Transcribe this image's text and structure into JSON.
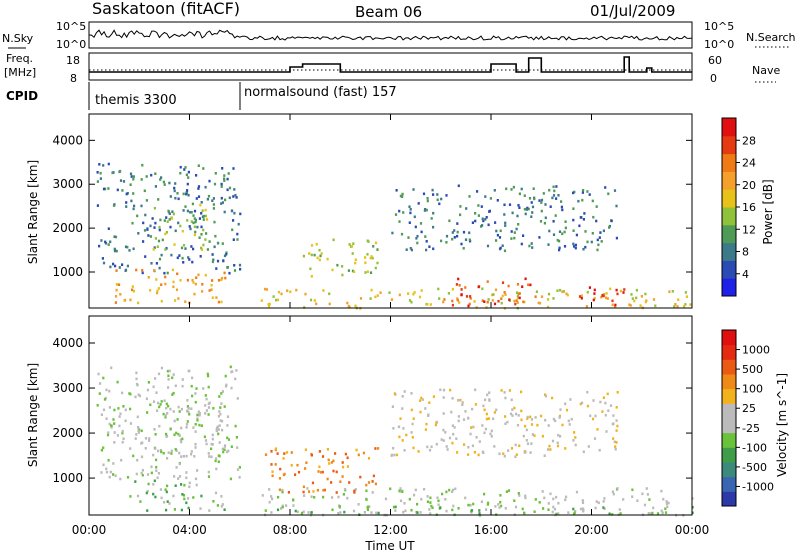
{
  "header": {
    "title": "Saskatoon (fitACF)",
    "beam": "Beam 06",
    "date": "01/Jul/2009"
  },
  "noise_panel": {
    "left_label": "N.Sky",
    "left_ticks": [
      "10^5",
      "10^0"
    ],
    "right_label": "N.Search",
    "right_ticks": [
      "10^5",
      "10^0"
    ]
  },
  "freq_panel": {
    "left_label_1": "Freq.",
    "left_label_2": "[MHz]",
    "left_ticks": [
      "18",
      "8"
    ],
    "right_label": "Nave",
    "right_ticks": [
      "60",
      "0"
    ]
  },
  "cpid_panel": {
    "label": "CPID",
    "segments": [
      {
        "name": "themis 3300",
        "start_hour": 0
      },
      {
        "name": "normalsound (fast) 157",
        "start_hour": 6
      }
    ]
  },
  "x_axis": {
    "label": "Time UT",
    "ticks": [
      "00:00",
      "04:00",
      "08:00",
      "12:00",
      "16:00",
      "20:00",
      "00:00"
    ]
  },
  "chart_data": [
    {
      "type": "heatmap",
      "title": "",
      "ylabel": "Slant Range [km]",
      "xlabel": "Time UT",
      "x_range_hours": [
        0,
        24
      ],
      "ylim": [
        180,
        4600
      ],
      "yticks": [
        1000,
        2000,
        3000,
        4000
      ],
      "colorbar": {
        "label": "Power [dB]",
        "ticks": [
          4,
          8,
          12,
          16,
          20,
          24,
          28
        ],
        "colors": [
          "#1e22e8",
          "#2a4bb4",
          "#3c7a8a",
          "#4f9a55",
          "#8fc13a",
          "#e6c21b",
          "#f4a02a",
          "#f07a16",
          "#e53a12",
          "#e01010"
        ]
      },
      "regions": [
        {
          "t0": 0.3,
          "t1": 6.0,
          "r0": 1000,
          "r1": 3500,
          "level": 2
        },
        {
          "t0": 1.0,
          "t1": 5.5,
          "r0": 300,
          "r1": 1100,
          "level": 6
        },
        {
          "t0": 2.5,
          "t1": 4.8,
          "r0": 1500,
          "r1": 2600,
          "level": 4
        },
        {
          "t0": 6.8,
          "t1": 24.0,
          "r0": 200,
          "r1": 650,
          "level": 5
        },
        {
          "t0": 14.0,
          "t1": 17.8,
          "r0": 250,
          "r1": 900,
          "level": 8
        },
        {
          "t0": 19.5,
          "t1": 21.3,
          "r0": 250,
          "r1": 700,
          "level": 9
        },
        {
          "t0": 8.5,
          "t1": 11.5,
          "r0": 900,
          "r1": 1800,
          "level": 4
        },
        {
          "t0": 12.0,
          "t1": 21.0,
          "r0": 1500,
          "r1": 3000,
          "level": 2
        }
      ]
    },
    {
      "type": "heatmap",
      "title": "",
      "ylabel": "Slant Range [km]",
      "xlabel": "Time UT",
      "x_range_hours": [
        0,
        24
      ],
      "ylim": [
        180,
        4600
      ],
      "yticks": [
        1000,
        2000,
        3000,
        4000
      ],
      "colorbar": {
        "label": "Velocity [m s^-1]",
        "ticks": [
          1000,
          500,
          100,
          25,
          -25,
          -100,
          -500,
          -1000
        ],
        "colors": [
          "#2b3aa8",
          "#3966b2",
          "#3c8a7c",
          "#3f9d4a",
          "#6ac13a",
          "#bbbbbb",
          "#bbbbbb",
          "#f2b21e",
          "#f08a16",
          "#eb5a12",
          "#e62a12",
          "#e01010"
        ]
      },
      "regions": [
        {
          "t0": 0.3,
          "t1": 6.0,
          "r0": 1000,
          "r1": 3500,
          "level": 5
        },
        {
          "t0": 1.5,
          "t1": 5.5,
          "r0": 300,
          "r1": 1000,
          "level": 4
        },
        {
          "t0": 2.5,
          "t1": 5.5,
          "r0": 1500,
          "r1": 2700,
          "level": 5
        },
        {
          "t0": 6.8,
          "t1": 24.0,
          "r0": 200,
          "r1": 800,
          "level": 5
        },
        {
          "t0": 6.8,
          "t1": 24.0,
          "r0": 200,
          "r1": 400,
          "level": 4
        },
        {
          "t0": 7.0,
          "t1": 11.5,
          "r0": 700,
          "r1": 1700,
          "level": 8
        },
        {
          "t0": 12.0,
          "t1": 21.0,
          "r0": 1500,
          "r1": 3000,
          "level": 6
        }
      ]
    }
  ]
}
